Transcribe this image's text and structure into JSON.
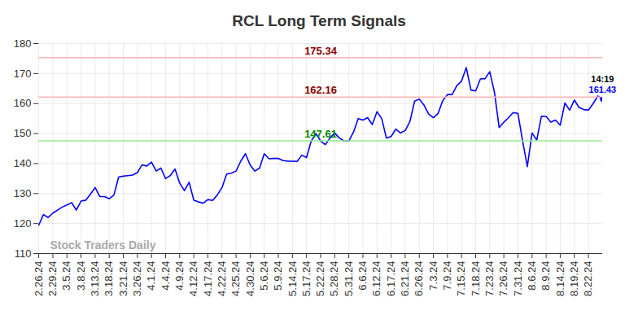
{
  "chart_data": {
    "type": "line",
    "title": "RCL Long Term Signals",
    "watermark": "Stock Traders Daily",
    "categories": [
      "2.26.24",
      null,
      null,
      "2.29.24",
      null,
      null,
      "3.5.24",
      null,
      null,
      "3.8.24",
      null,
      null,
      "3.13.24",
      null,
      null,
      "3.18.24",
      null,
      null,
      "3.21.24",
      null,
      null,
      "3.26.24",
      null,
      null,
      "4.1.24",
      null,
      null,
      "4.4.24",
      null,
      null,
      "4.9.24",
      null,
      null,
      "4.12.24",
      null,
      null,
      "4.17.24",
      null,
      null,
      "4.22.24",
      null,
      null,
      "4.25.24",
      null,
      null,
      "4.30.24",
      null,
      null,
      "5.6.24",
      null,
      null,
      "5.9.24",
      null,
      null,
      "5.14.24",
      null,
      null,
      "5.17.24",
      null,
      null,
      "5.22.24",
      null,
      null,
      "5.28.24",
      null,
      null,
      "5.31.24",
      null,
      null,
      "6.6.24",
      null,
      null,
      "6.12.24",
      null,
      null,
      "6.17.24",
      null,
      null,
      "6.21.24",
      null,
      null,
      "6.26.24",
      null,
      null,
      "7.3.24",
      null,
      null,
      "7.9.24",
      null,
      null,
      "7.15.24",
      null,
      null,
      "7.18.24",
      null,
      null,
      "7.23.24",
      null,
      null,
      "7.26.24",
      null,
      null,
      "7.31.24",
      null,
      null,
      "8.6.24",
      null,
      null,
      "8.9.24",
      null,
      null,
      "8.14.24",
      null,
      null,
      "8.19.24",
      null,
      null,
      "8.22.24",
      null,
      null,
      null
    ],
    "values": [
      119.5,
      123,
      122,
      123.5,
      124.5,
      125.5,
      126.2,
      127,
      124.5,
      127.5,
      127.8,
      129.8,
      132,
      129,
      129,
      128.3,
      129.5,
      135.5,
      135.8,
      136,
      136.2,
      137,
      139.6,
      139.2,
      140.5,
      137.5,
      138.5,
      135,
      136,
      138.2,
      133.5,
      131,
      133.8,
      127.8,
      127.2,
      126.8,
      128,
      127.7,
      129.5,
      132,
      136.5,
      136.8,
      137.5,
      140.8,
      143.3,
      139.5,
      137.5,
      138.5,
      143.3,
      141.6,
      141.7,
      141.7,
      141,
      140.8,
      140.8,
      140.7,
      142.8,
      142,
      147.5,
      150,
      147.5,
      146.3,
      148.5,
      150.2,
      148.5,
      147.5,
      147.5,
      150.5,
      155,
      154.5,
      155.3,
      153,
      157.3,
      155,
      148.5,
      149,
      151.5,
      150.2,
      151,
      154,
      160.8,
      161.5,
      159.5,
      156.5,
      155.3,
      156.7,
      161,
      163,
      163,
      166,
      167.5,
      172,
      164.5,
      164.2,
      168.2,
      168.3,
      170.6,
      163.8,
      152,
      153.8,
      155.3,
      157,
      156.7,
      147.5,
      139,
      150.2,
      147.8,
      155.8,
      155.7,
      153.8,
      154.5,
      152.8,
      160.2,
      157.8,
      161.2,
      158.7,
      158,
      157.8,
      160,
      162.5,
      161.43
    ],
    "color": "#0000ff",
    "ylim": [
      110,
      180
    ],
    "yticks": [
      110,
      120,
      130,
      140,
      150,
      160,
      170,
      180
    ],
    "grid": true,
    "reference_lines": [
      {
        "value": 175.34,
        "color": "#ffb3b3"
      },
      {
        "value": 162.16,
        "color": "#ffb3b3"
      },
      {
        "value": 147.61,
        "color": "#90ee90"
      }
    ],
    "last_label": {
      "time": "14:19",
      "value": 161.43
    }
  }
}
